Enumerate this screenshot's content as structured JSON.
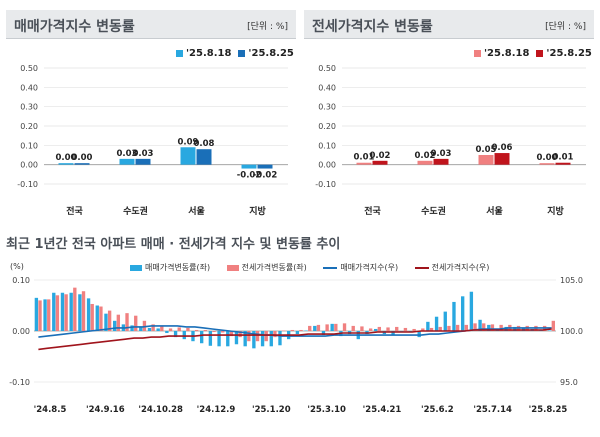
{
  "chart_data": [
    {
      "type": "bar",
      "title": "매매가격지수 변동률",
      "unit": "[단위 : %]",
      "categories": [
        "전국",
        "수도권",
        "서울",
        "지방"
      ],
      "series": [
        {
          "name": "'25.8.18",
          "values": [
            0.0,
            0.03,
            0.09,
            -0.02
          ],
          "color": "#29a8e0"
        },
        {
          "name": "'25.8.25",
          "values": [
            0.0,
            0.03,
            0.08,
            -0.02
          ],
          "color": "#1a6fb8"
        }
      ],
      "value_labels": [
        [
          "0.00",
          "0.03",
          "0.09",
          "-0.02"
        ],
        [
          "0.00",
          "0.03",
          "0.08",
          "-0.02"
        ]
      ],
      "yticks": [
        "0.50",
        "0.40",
        "0.30",
        "0.20",
        "0.10",
        "0.00",
        "-0.10"
      ],
      "ylim": [
        -0.1,
        0.5
      ]
    },
    {
      "type": "bar",
      "title": "전세가격지수 변동률",
      "unit": "[단위 : %]",
      "categories": [
        "전국",
        "수도권",
        "서울",
        "지방"
      ],
      "series": [
        {
          "name": "'25.8.18",
          "values": [
            0.01,
            0.02,
            0.05,
            0.0
          ],
          "color": "#f08080"
        },
        {
          "name": "'25.8.25",
          "values": [
            0.02,
            0.03,
            0.06,
            0.01
          ],
          "color": "#c0141c"
        }
      ],
      "value_labels": [
        [
          "0.01",
          "0.02",
          "0.05",
          "0.00"
        ],
        [
          "0.02",
          "0.03",
          "0.06",
          "0.01"
        ]
      ],
      "yticks": [
        "0.50",
        "0.40",
        "0.30",
        "0.20",
        "0.10",
        "0.00",
        "-0.10"
      ],
      "ylim": [
        -0.1,
        0.5
      ]
    },
    {
      "type": "bar+line",
      "title": "최근 1년간 전국 아파트 매매 · 전세가격 지수 및 변동률 추이",
      "left_unit": "(%)",
      "left_yticks": [
        "0.10",
        "0.00",
        "-0.10"
      ],
      "right_yticks": [
        "105.0",
        "100.0",
        "95.0"
      ],
      "left_ylim": [
        -0.1,
        0.1
      ],
      "right_ylim": [
        95.0,
        105.0
      ],
      "x_ticks": [
        "'24.8.5",
        "'24.9.16",
        "'24.10.28",
        "'24.12.9",
        "'25.1.20",
        "'25.3.10",
        "'25.4.21",
        "'25.6.2",
        "'25.7.14",
        "'25.8.25"
      ],
      "legend": [
        "매매가격변동률(좌)",
        "전세가격변동률(좌)",
        "매매가격지수(우)",
        "전세가격지수(우)"
      ],
      "colors": {
        "sale_rate": "#29a8e0",
        "jeonse_rate": "#f08080",
        "sale_index": "#1a6fb8",
        "jeonse_index": "#a0141c"
      },
      "sale_rate": [
        0.065,
        0.062,
        0.075,
        0.075,
        0.075,
        0.072,
        0.064,
        0.05,
        0.034,
        0.02,
        0.013,
        0.011,
        0.009,
        0.006,
        0.005,
        -0.004,
        -0.012,
        -0.016,
        -0.02,
        -0.024,
        -0.029,
        -0.03,
        -0.03,
        -0.026,
        -0.03,
        -0.034,
        -0.03,
        -0.03,
        -0.028,
        -0.016,
        -0.006,
        0.0,
        0.01,
        -0.008,
        0.014,
        -0.01,
        -0.006,
        -0.016,
        -0.006,
        0.004,
        -0.006,
        -0.008,
        -0.002,
        -0.003,
        -0.012,
        0.018,
        0.028,
        0.038,
        0.057,
        0.068,
        0.077,
        0.022,
        0.012,
        0.002,
        0.008,
        0.008,
        0.005,
        0.004,
        0.0,
        0.0
      ],
      "jeonse_rate": [
        0.06,
        0.062,
        0.07,
        0.072,
        0.085,
        0.078,
        0.053,
        0.048,
        0.04,
        0.032,
        0.035,
        0.03,
        0.02,
        0.013,
        0.01,
        0.005,
        0.007,
        0.006,
        0.002,
        0.002,
        -0.002,
        -0.003,
        -0.01,
        -0.012,
        -0.02,
        -0.02,
        -0.02,
        -0.012,
        0.0,
        0.002,
        0.002,
        0.01,
        0.012,
        0.013,
        0.014,
        0.015,
        0.01,
        0.009,
        0.005,
        0.008,
        0.007,
        0.008,
        0.006,
        0.004,
        0.005,
        0.006,
        0.008,
        0.01,
        0.012,
        0.012,
        0.015,
        0.015,
        0.013,
        0.012,
        0.012,
        0.01,
        0.01,
        0.01,
        0.01,
        0.02
      ],
      "sale_index": [
        99.4,
        99.5,
        99.6,
        99.7,
        99.8,
        99.9,
        100.0,
        100.1,
        100.2,
        100.3,
        100.3,
        100.4,
        100.4,
        100.5,
        100.5,
        100.5,
        100.5,
        100.4,
        100.4,
        100.3,
        100.2,
        100.1,
        100.0,
        99.9,
        99.8,
        99.7,
        99.6,
        99.6,
        99.5,
        99.5,
        99.5,
        99.5,
        99.5,
        99.5,
        99.6,
        99.6,
        99.6,
        99.6,
        99.6,
        99.6,
        99.6,
        99.6,
        99.6,
        99.6,
        99.6,
        99.7,
        99.7,
        99.8,
        99.9,
        100.0,
        100.1,
        100.2,
        100.2,
        100.2,
        100.3,
        100.3,
        100.3,
        100.3,
        100.3,
        100.3
      ],
      "jeonse_index": [
        98.2,
        98.3,
        98.4,
        98.5,
        98.6,
        98.7,
        98.8,
        98.9,
        99.0,
        99.1,
        99.2,
        99.3,
        99.3,
        99.4,
        99.4,
        99.5,
        99.5,
        99.5,
        99.5,
        99.6,
        99.6,
        99.6,
        99.6,
        99.6,
        99.6,
        99.6,
        99.6,
        99.6,
        99.6,
        99.6,
        99.6,
        99.7,
        99.7,
        99.7,
        99.7,
        99.8,
        99.8,
        99.8,
        99.8,
        99.9,
        99.9,
        99.9,
        99.9,
        99.9,
        100.0,
        100.0,
        100.0,
        100.0,
        100.0,
        100.0,
        100.1,
        100.1,
        100.1,
        100.1,
        100.1,
        100.1,
        100.1,
        100.1,
        100.1,
        100.2
      ]
    }
  ]
}
